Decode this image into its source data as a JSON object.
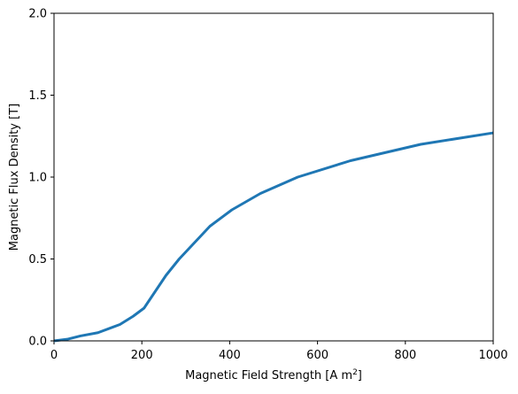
{
  "chart_data": {
    "type": "line",
    "title": "",
    "xlabel": "Magnetic Field Strength [A m",
    "xlabel_superscript": "2",
    "xlabel_suffix": "]",
    "ylabel": "Magnetic Flux Density [T]",
    "xlim": [
      0,
      1000
    ],
    "ylim": [
      0,
      2.0
    ],
    "x_ticks": [
      0,
      200,
      400,
      600,
      800,
      1000
    ],
    "x_tick_labels": [
      "0",
      "200",
      "400",
      "600",
      "800",
      "1000"
    ],
    "y_ticks": [
      0,
      0.5,
      1.0,
      1.5,
      2.0
    ],
    "y_tick_labels": [
      "0.0",
      "0.5",
      "1.0",
      "1.5",
      "2.0"
    ],
    "grid": false,
    "series": [
      {
        "color": "#1f77b4",
        "x": [
          0,
          30,
          60,
          100,
          150,
          180,
          205,
          230,
          255,
          285,
          320,
          355,
          405,
          470,
          555,
          675,
          835,
          1000
        ],
        "y": [
          0.0,
          0.01,
          0.03,
          0.05,
          0.1,
          0.15,
          0.2,
          0.3,
          0.4,
          0.5,
          0.6,
          0.7,
          0.8,
          0.9,
          1.0,
          1.1,
          1.2,
          1.27
        ]
      }
    ]
  }
}
